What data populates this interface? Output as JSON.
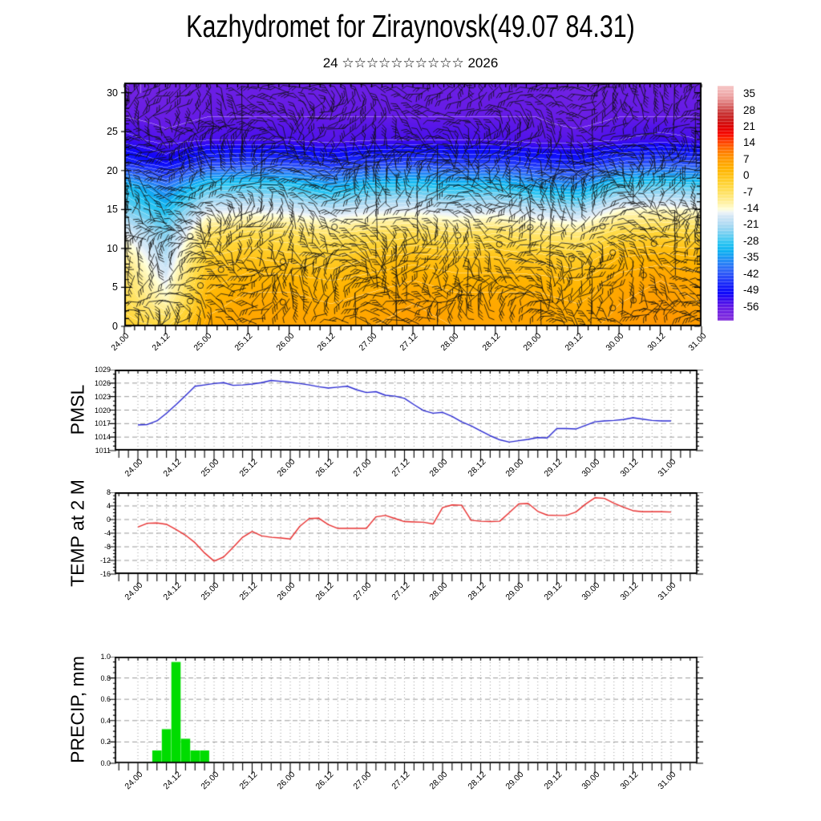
{
  "title": "Kazhydromet for Ziraynovsk(49.07 84.31)",
  "subtitle": "24 ☆☆☆☆☆☆☆☆☆☆ 2026",
  "time_labels": [
    "24.00",
    "24.12",
    "25.00",
    "25.12",
    "26.00",
    "26.12",
    "27.00",
    "27.12",
    "28.00",
    "28.12",
    "29.00",
    "29.12",
    "30.00",
    "30.12",
    "31.00"
  ],
  "colors": {
    "pmsl_line": "#2b2bd2",
    "temp_line": "#e82f2f",
    "precip_bar": "#00dc00",
    "grid": "#999999",
    "axis": "#000000",
    "barb": "rgba(15,15,15,0.82)"
  },
  "chart_data": [
    {
      "id": "cross_section",
      "type": "heatmap",
      "title": "vertical cross-section, temperature fill with wind barbs",
      "yticks": [
        0,
        5,
        10,
        15,
        20,
        25,
        30
      ],
      "ylim": [
        0,
        30
      ],
      "x_categories": [
        "24.00",
        "24.12",
        "25.00",
        "25.12",
        "26.00",
        "26.12",
        "27.00",
        "27.12",
        "28.00",
        "28.12",
        "29.00",
        "29.12",
        "30.00",
        "30.12",
        "31.00"
      ],
      "heights": [
        30,
        27,
        24,
        21,
        18,
        15,
        12,
        9,
        6,
        3,
        0
      ],
      "values": [
        [
          -58,
          -58,
          -57,
          -57,
          -57,
          -57,
          -57,
          -57,
          -57,
          -57,
          -57,
          -58,
          -57,
          -57,
          -57
        ],
        [
          -56,
          -57,
          -56,
          -56,
          -56,
          -56,
          -56,
          -56,
          -56,
          -56,
          -56,
          -57,
          -56,
          -56,
          -56
        ],
        [
          -53,
          -55,
          -54,
          -54,
          -54,
          -55,
          -54,
          -54,
          -54,
          -54,
          -55,
          -55,
          -54,
          -53,
          -54
        ],
        [
          -46,
          -50,
          -44,
          -43,
          -44,
          -46,
          -44,
          -43,
          -44,
          -44,
          -46,
          -47,
          -43,
          -42,
          -43
        ],
        [
          -30,
          -38,
          -28,
          -27,
          -28,
          -33,
          -29,
          -28,
          -30,
          -29,
          -33,
          -35,
          -27,
          -26,
          -27
        ],
        [
          -24,
          -30,
          -17,
          -16,
          -17,
          -19,
          -17,
          -16,
          -18,
          -17,
          -19,
          -21,
          -14,
          -13,
          -14
        ],
        [
          -16,
          -24,
          -7,
          -5,
          -6,
          -8,
          -6,
          -5,
          -7,
          -6,
          -8,
          -9,
          -4,
          -3,
          -4
        ],
        [
          -10,
          -20,
          -2,
          0,
          -1,
          -2,
          0,
          1,
          0,
          0,
          -1,
          -2,
          2,
          3,
          2
        ],
        [
          -7,
          -16,
          1,
          3,
          3,
          2,
          3,
          4,
          3,
          3,
          3,
          2,
          5,
          6,
          5
        ],
        [
          -5,
          -12,
          3,
          5,
          5,
          4,
          5,
          6,
          5,
          5,
          5,
          4,
          6,
          7,
          6
        ],
        [
          -2,
          -4,
          5,
          6,
          6,
          6,
          6,
          7,
          6,
          6,
          6,
          5,
          7,
          8,
          7
        ]
      ],
      "wind_barbs_overlay": true,
      "colorbar_ticks": [
        "35",
        "28",
        "21",
        "14",
        "7",
        "0",
        "-7",
        "-14",
        "-21",
        "-28",
        "-35",
        "-42",
        "-49",
        "-56"
      ],
      "palette": [
        [
          38,
          "#f6c3c3"
        ],
        [
          34,
          "#eda1a1"
        ],
        [
          30,
          "#d96666"
        ],
        [
          27,
          "#c93333"
        ],
        [
          24,
          "#cc1a1a"
        ],
        [
          21,
          "#e00000"
        ],
        [
          18,
          "#f80800"
        ],
        [
          15,
          "#ff3c00"
        ],
        [
          12,
          "#ff6a00"
        ],
        [
          9,
          "#ff8c00"
        ],
        [
          6,
          "#ffa300"
        ],
        [
          3,
          "#ffb400"
        ],
        [
          0,
          "#ffc41a"
        ],
        [
          -3,
          "#ffd435"
        ],
        [
          -6,
          "#ffdf55"
        ],
        [
          -9,
          "#ffe97e"
        ],
        [
          -12,
          "#fff4ad"
        ],
        [
          -14,
          "#ffffd8"
        ],
        [
          -15.5,
          "#eef4f8"
        ],
        [
          -17,
          "#d5e8f6"
        ],
        [
          -20,
          "#b5ddf4"
        ],
        [
          -23,
          "#8fd4f2"
        ],
        [
          -26,
          "#5ccdf2"
        ],
        [
          -29,
          "#27c4f2"
        ],
        [
          -32,
          "#0fb2f2"
        ],
        [
          -35,
          "#1e97f5"
        ],
        [
          -38,
          "#2b7bf7"
        ],
        [
          -41,
          "#2f5ff8"
        ],
        [
          -44,
          "#2440fa"
        ],
        [
          -47,
          "#1520fb"
        ],
        [
          -50,
          "#0b06fb"
        ],
        [
          -53,
          "#3a0bf0"
        ],
        [
          -56,
          "#641ae6"
        ],
        [
          -60,
          "#7d2ae0"
        ],
        [
          -63,
          "#8936d8"
        ]
      ]
    },
    {
      "id": "pmsl",
      "type": "line",
      "ylabel": "PMSL",
      "ytick_labels": [
        "1029",
        "1026",
        "1023",
        "1020",
        "1017",
        "1014",
        "1011"
      ],
      "ylim": [
        1011,
        1029
      ],
      "y_minor_step": 1,
      "x_start": "24.00",
      "x_step_hours": 3,
      "values": [
        1016.7,
        1016.8,
        1017.6,
        1019.3,
        1021.2,
        1023.2,
        1025.3,
        1025.6,
        1025.9,
        1026.1,
        1025.5,
        1025.6,
        1025.8,
        1026.1,
        1026.6,
        1026.4,
        1026.2,
        1025.9,
        1025.6,
        1025.2,
        1024.9,
        1025.1,
        1025.3,
        1024.5,
        1023.9,
        1024.1,
        1023.3,
        1023.1,
        1022.6,
        1021.2,
        1019.9,
        1019.3,
        1019.5,
        1018.6,
        1017.4,
        1016.5,
        1015.4,
        1014.3,
        1013.4,
        1012.9,
        1013.2,
        1013.5,
        1013.9,
        1013.8,
        1015.9,
        1015.9,
        1015.8,
        1016.6,
        1017.4,
        1017.6,
        1017.7,
        1017.9,
        1018.3,
        1018.0,
        1017.7,
        1017.6,
        1017.6
      ]
    },
    {
      "id": "temp2m",
      "type": "line",
      "ylabel": "TEMP at 2 M",
      "ytick_labels": [
        "8",
        "4",
        "0",
        "-4",
        "-8",
        "-12",
        "-16"
      ],
      "ylim": [
        -16,
        8
      ],
      "y_minor_step": 1,
      "x_start": "24.00",
      "x_step_hours": 3,
      "values": [
        -2.2,
        -1.1,
        -1.0,
        -1.4,
        -2.9,
        -4.6,
        -6.8,
        -9.8,
        -12.2,
        -11.0,
        -8.2,
        -5.2,
        -3.5,
        -4.8,
        -5.2,
        -5.4,
        -5.7,
        -2.0,
        0.3,
        0.4,
        -1.5,
        -2.6,
        -2.6,
        -2.6,
        -2.6,
        0.8,
        1.2,
        0.3,
        -0.6,
        -0.7,
        -0.8,
        -1.3,
        3.5,
        4.3,
        4.2,
        -0.2,
        -0.5,
        -0.6,
        -0.5,
        2.0,
        4.6,
        4.7,
        2.4,
        1.3,
        1.2,
        1.2,
        2.2,
        4.5,
        6.4,
        6.2,
        4.8,
        3.6,
        2.6,
        2.3,
        2.3,
        2.3,
        2.2
      ]
    },
    {
      "id": "precip",
      "type": "bar",
      "ylabel": "PRECIP, mm",
      "ytick_labels": [
        "1.0",
        "0.8",
        "0.6",
        "0.4",
        "0.2",
        "0.0"
      ],
      "ylim": [
        0,
        1
      ],
      "y_minor_step": 0.05,
      "x_start": "24.00",
      "x_step_hours": 3,
      "values": [
        0,
        0.01,
        0.12,
        0.32,
        0.95,
        0.23,
        0.12,
        0.12,
        0.01,
        0,
        0,
        0,
        0,
        0,
        0,
        0,
        0,
        0,
        0,
        0,
        0,
        0,
        0,
        0,
        0,
        0,
        0,
        0,
        0,
        0,
        0,
        0,
        0,
        0,
        0,
        0,
        0,
        0,
        0,
        0,
        0,
        0,
        0,
        0,
        0,
        0,
        0,
        0,
        0,
        0,
        0,
        0,
        0,
        0,
        0,
        0,
        0
      ]
    }
  ]
}
